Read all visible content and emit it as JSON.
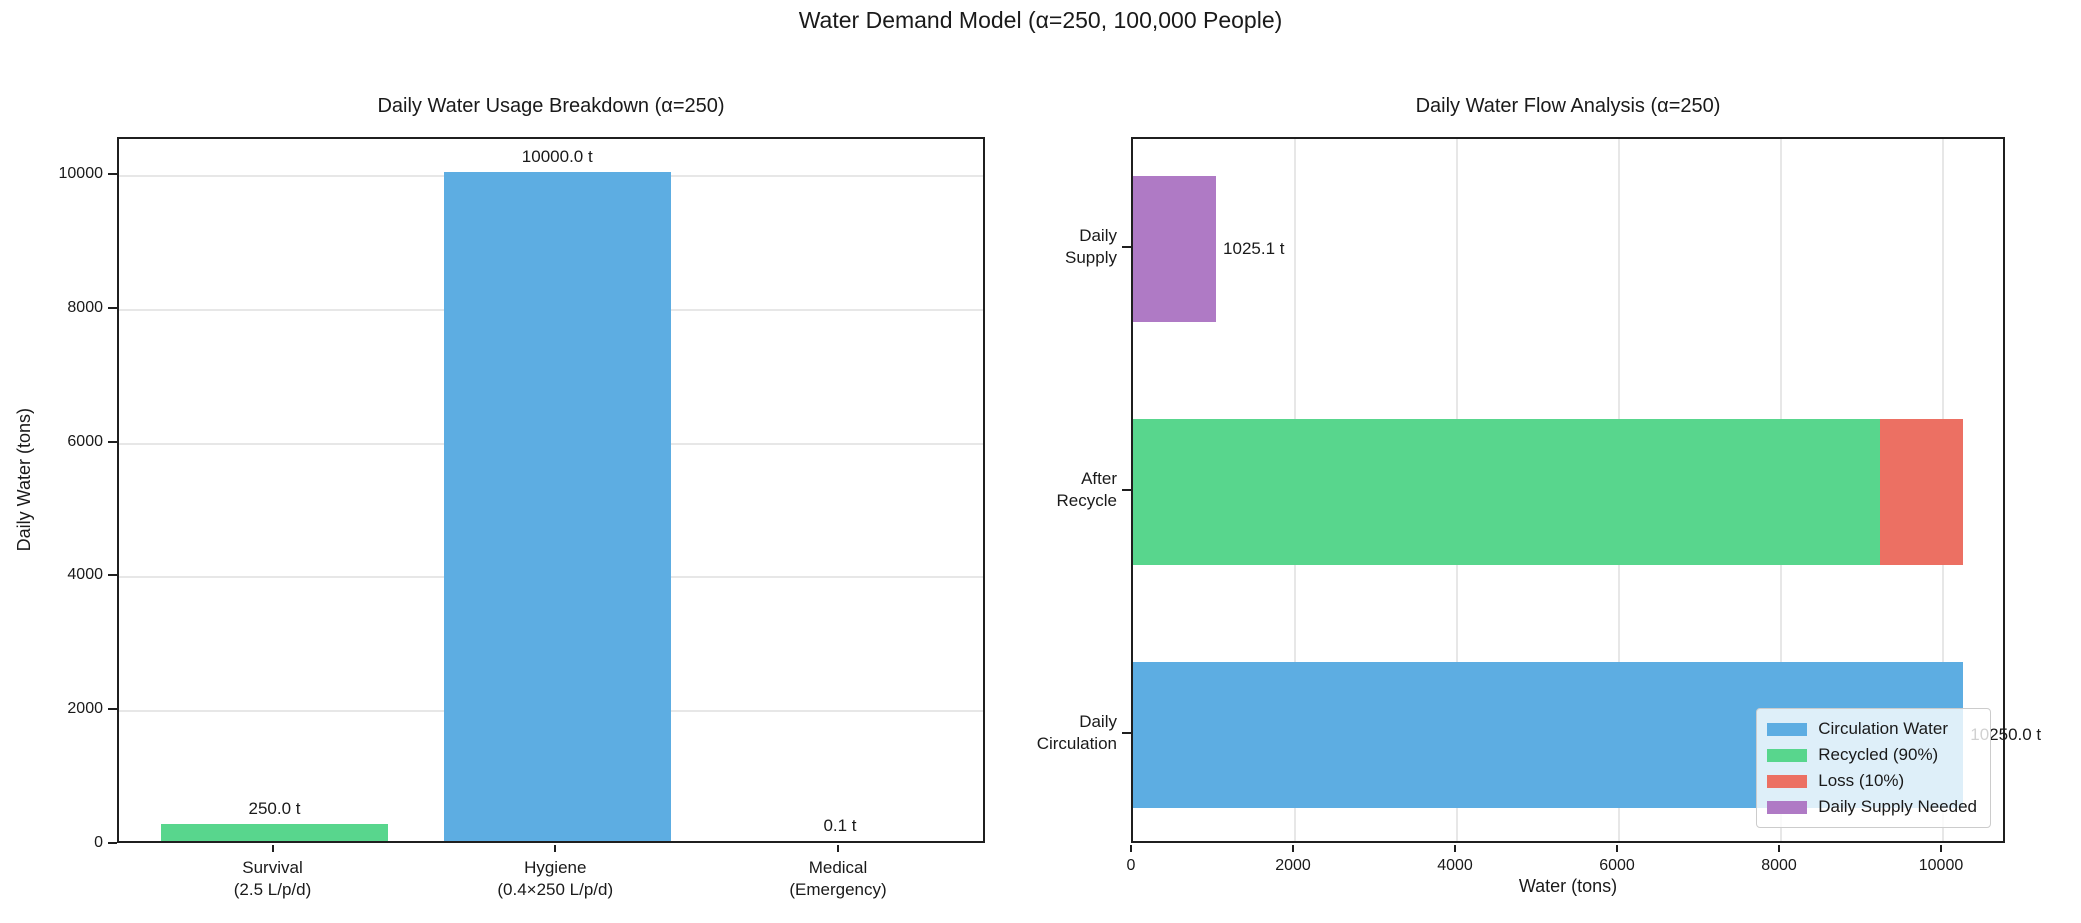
{
  "figure": {
    "suptitle": "Water Demand Model (α=250, 100,000 People)"
  },
  "palette": {
    "blue": "#5dade2",
    "green": "#58d68d",
    "red": "#ec7063",
    "purple": "#af7ac5",
    "text": "#1a1a1a",
    "grid": "#e7e7e7",
    "spine": "#1f1f1f",
    "legend_border": "#cccccc"
  },
  "chart_data": [
    {
      "type": "bar",
      "title": "Daily Water Usage Breakdown (α=250)",
      "xlabel": "",
      "ylabel": "Daily Water (tons)",
      "categories": [
        "Survival\n(2.5 L/p/d)",
        "Hygiene\n(0.4×250 L/p/d)",
        "Medical\n(Emergency)"
      ],
      "values": [
        250.0,
        10000.0,
        0.1
      ],
      "bar_labels": [
        "250.0 t",
        "10000.0 t",
        "0.1 t"
      ],
      "bar_colors": [
        "green",
        "blue",
        "red"
      ],
      "yticks": [
        0,
        2000,
        4000,
        6000,
        8000,
        10000
      ],
      "ylim": [
        0,
        10553
      ],
      "grid": "horizontal"
    },
    {
      "type": "barh",
      "title": "Daily Water Flow Analysis (α=250)",
      "xlabel": "Water (tons)",
      "ylabel": "",
      "categories": [
        "Daily\nSupply",
        "After\nRecycle",
        "Daily\nCirculation"
      ],
      "segments": [
        {
          "row": 0,
          "name": "Daily Supply Needed",
          "color": "purple",
          "start": 0,
          "value": 1025.1,
          "label": "1025.1 t"
        },
        {
          "row": 1,
          "name": "Recycled (90%)",
          "color": "green",
          "start": 0,
          "value": 9225.0
        },
        {
          "row": 1,
          "name": "Loss (10%)",
          "color": "red",
          "start": 9225.0,
          "value": 1025.0
        },
        {
          "row": 2,
          "name": "Circulation Water",
          "color": "blue",
          "start": 0,
          "value": 10250.0,
          "label": "10250.0 t"
        }
      ],
      "xticks": [
        0,
        2000,
        4000,
        6000,
        8000,
        10000
      ],
      "xlim": [
        0,
        10790
      ],
      "grid": "vertical",
      "legend": {
        "position": "lower right",
        "items": [
          {
            "label": "Circulation Water",
            "color": "blue"
          },
          {
            "label": "Recycled (90%)",
            "color": "green"
          },
          {
            "label": "Loss (10%)",
            "color": "red"
          },
          {
            "label": "Daily Supply Needed",
            "color": "purple"
          }
        ]
      }
    }
  ]
}
